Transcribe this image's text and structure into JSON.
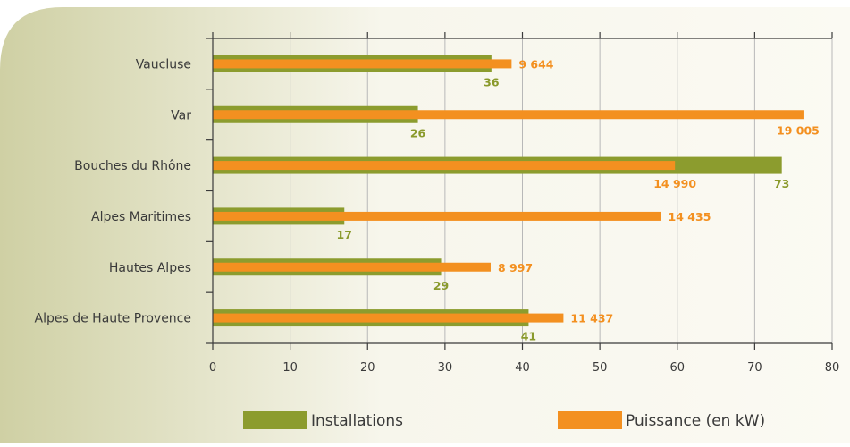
{
  "colors": {
    "installations": "#8c9c2e",
    "puissance": "#f39020",
    "panel_start": "#cfd0a4",
    "panel_end": "#f7f6ec",
    "text": "#3a3a3a",
    "grid": "#b8b8b8"
  },
  "chart_data": {
    "type": "bar",
    "orientation": "horizontal",
    "categories": [
      "Vaucluse",
      "Var",
      "Bouches du Rhône",
      "Alpes Maritimes",
      "Hautes Alpes",
      "Alpes de Haute Provence"
    ],
    "series": [
      {
        "name": "Installations",
        "values": [
          36,
          26,
          73,
          17,
          29,
          41
        ],
        "labels": [
          "36",
          "26",
          "73",
          "17",
          "29",
          "41"
        ],
        "scale_values": [
          36,
          26.5,
          73.5,
          17,
          29.5,
          40.8
        ]
      },
      {
        "name": "Puissance (en kW)",
        "values": [
          9644,
          19005,
          14990,
          14435,
          8997,
          11437
        ],
        "labels": [
          "9 644",
          "19 005",
          "14 990",
          "14 435",
          "8 997",
          "11 437"
        ],
        "scale_values": [
          38.6,
          76.3,
          59.7,
          57.9,
          35.9,
          45.3
        ]
      }
    ],
    "xlim": [
      0,
      80
    ],
    "xticks": [
      "0",
      "10",
      "20",
      "30",
      "40",
      "50",
      "60",
      "70",
      "80"
    ],
    "grid": true,
    "legend_position": "bottom"
  }
}
